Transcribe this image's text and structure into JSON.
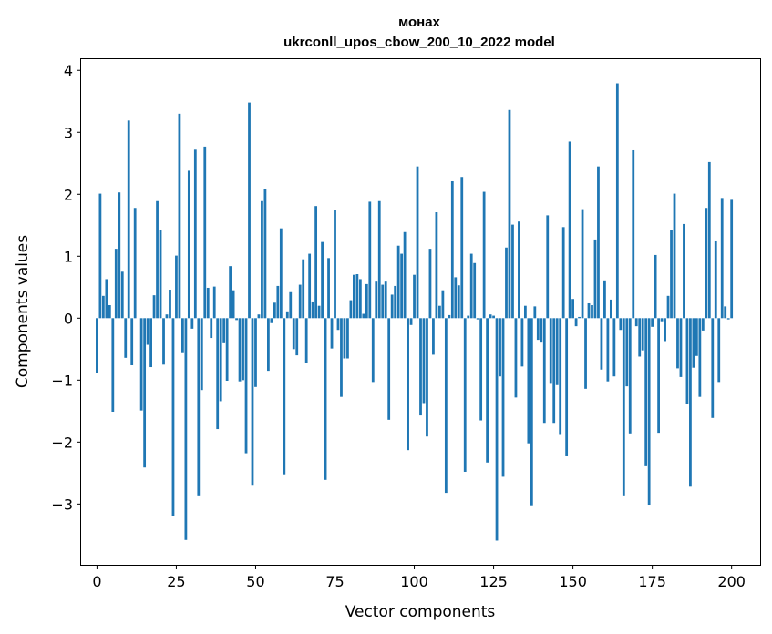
{
  "chart_data": {
    "type": "bar",
    "title_line1": "монах",
    "title_line2": "ukrconll_upos_cbow_200_10_2022 model",
    "xlabel": "Vector components",
    "ylabel": "Components values",
    "xlim": [
      -5,
      209
    ],
    "ylim": [
      -3.98,
      4.18
    ],
    "xticks": [
      0,
      25,
      50,
      75,
      100,
      125,
      150,
      175,
      200
    ],
    "yticks": [
      -3,
      -2,
      -1,
      0,
      1,
      2,
      3,
      4
    ],
    "grid": false,
    "bar_color": "#1f77b4",
    "values": [
      -0.89,
      2.01,
      0.36,
      0.63,
      0.21,
      -1.51,
      1.12,
      2.03,
      0.75,
      -0.64,
      3.19,
      -0.76,
      1.78,
      0.0,
      -1.49,
      -2.41,
      -0.43,
      -0.79,
      0.37,
      1.89,
      1.43,
      -0.75,
      0.06,
      0.46,
      -3.2,
      1.01,
      3.3,
      -0.55,
      -3.58,
      2.38,
      -0.17,
      2.72,
      -2.86,
      -1.16,
      2.77,
      0.49,
      -0.32,
      0.51,
      -1.79,
      -1.34,
      -0.39,
      -1.01,
      0.84,
      0.45,
      -0.03,
      -1.02,
      -1.0,
      -2.18,
      3.48,
      -2.69,
      -1.11,
      0.06,
      1.89,
      2.08,
      -0.85,
      -0.08,
      0.25,
      0.52,
      1.45,
      -2.52,
      0.11,
      0.42,
      -0.5,
      -0.6,
      0.54,
      0.95,
      -0.73,
      1.04,
      0.27,
      1.81,
      0.2,
      1.23,
      -2.61,
      0.97,
      -0.49,
      1.75,
      -0.19,
      -1.27,
      -0.65,
      -0.65,
      0.29,
      0.7,
      0.71,
      0.63,
      0.07,
      0.55,
      1.88,
      -1.03,
      0.59,
      1.89,
      0.54,
      0.59,
      -1.64,
      0.38,
      0.52,
      1.17,
      1.04,
      1.39,
      -2.13,
      -0.11,
      0.7,
      2.45,
      -1.57,
      -1.37,
      -1.91,
      1.12,
      -0.59,
      1.71,
      0.2,
      0.45,
      -2.82,
      0.05,
      2.21,
      0.66,
      0.53,
      2.28,
      -2.48,
      0.04,
      1.04,
      0.89,
      -0.02,
      -1.65,
      2.04,
      -2.33,
      0.06,
      0.04,
      -3.59,
      -0.94,
      -2.56,
      1.14,
      3.36,
      1.51,
      -1.28,
      1.56,
      -0.78,
      0.2,
      -2.02,
      -3.02,
      0.19,
      -0.35,
      -0.38,
      -1.69,
      1.66,
      -1.06,
      -1.69,
      -1.08,
      -1.87,
      1.47,
      -2.23,
      2.85,
      0.31,
      -0.13,
      0.02,
      1.76,
      -1.14,
      0.24,
      0.21,
      1.27,
      2.45,
      -0.83,
      0.61,
      -1.02,
      0.3,
      -0.94,
      3.79,
      -0.19,
      -2.86,
      -1.1,
      -1.86,
      2.71,
      -0.13,
      -0.62,
      -0.52,
      -2.39,
      -3.01,
      -0.14,
      1.02,
      -1.85,
      -0.05,
      -0.37,
      0.36,
      1.42,
      2.01,
      -0.81,
      -0.95,
      1.52,
      -1.39,
      -2.72,
      -0.8,
      -0.61,
      -1.27,
      -0.2,
      1.78,
      2.52,
      -1.61,
      1.24,
      -1.03,
      1.94,
      0.19,
      -0.02,
      1.91
    ]
  }
}
